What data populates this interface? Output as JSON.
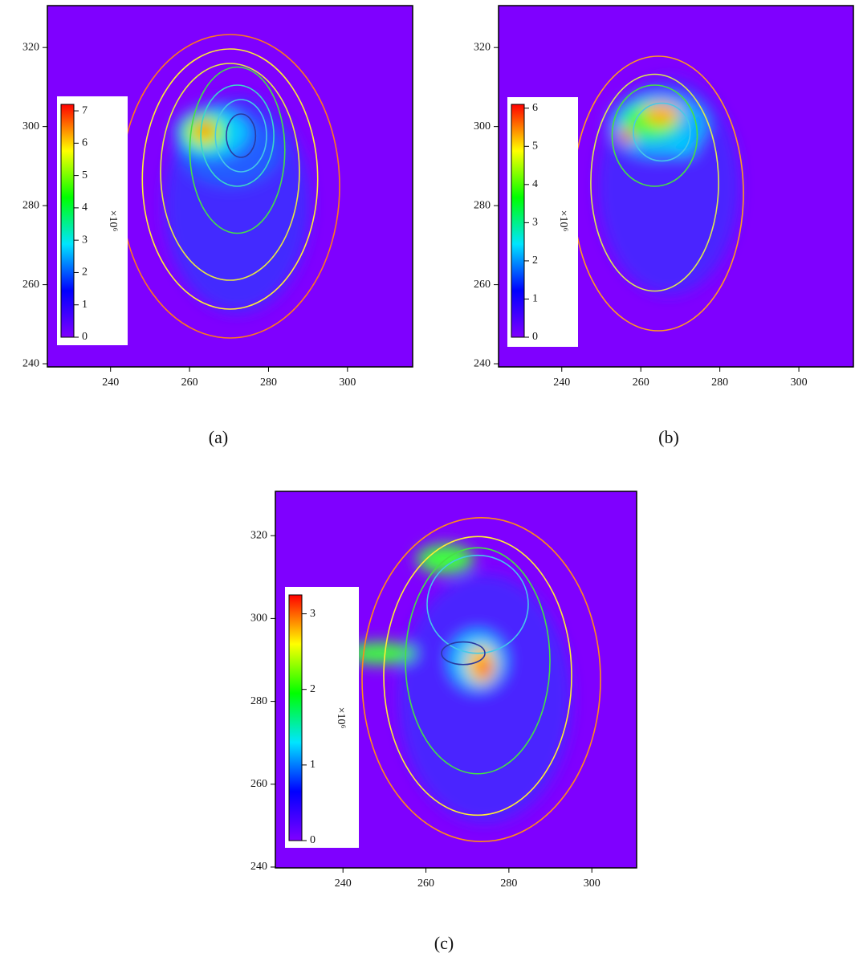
{
  "chart_data": [
    {
      "type": "heatmap",
      "caption": "(a)",
      "xlim": [
        224,
        316.5
      ],
      "ylim": [
        239.2,
        330.6
      ],
      "xticks": [
        240,
        260,
        280,
        300
      ],
      "yticks": [
        240,
        260,
        280,
        300,
        320
      ],
      "colorbar_label": "×10⁶",
      "clim": [
        0,
        7.2
      ],
      "cticks": [
        0,
        1,
        2,
        3,
        4,
        5,
        6,
        7
      ],
      "colormap": [
        "#7f00ff",
        "#0000ff",
        "#00e5ff",
        "#00ff00",
        "#ffff00",
        "#ff0000"
      ]
    },
    {
      "type": "heatmap",
      "caption": "(b)",
      "xlim": [
        224,
        313.8
      ],
      "ylim": [
        239.2,
        330.6
      ],
      "xticks": [
        240,
        260,
        280,
        300
      ],
      "yticks": [
        240,
        260,
        280,
        300,
        320
      ],
      "colorbar_label": "×10⁶",
      "clim": [
        0,
        6.1
      ],
      "cticks": [
        0,
        1,
        2,
        3,
        4,
        5,
        6
      ],
      "colormap": [
        "#7f00ff",
        "#0000ff",
        "#00e5ff",
        "#00ff00",
        "#ffff00",
        "#ff0000"
      ]
    },
    {
      "type": "heatmap",
      "caption": "(c)",
      "xlim": [
        223.7,
        310.8
      ],
      "ylim": [
        239.8,
        330.7
      ],
      "xticks": [
        240,
        260,
        280,
        300
      ],
      "yticks": [
        240,
        260,
        280,
        300,
        320
      ],
      "colorbar_label": "×10⁶",
      "clim": [
        0,
        3.25
      ],
      "cticks": [
        0,
        1,
        2,
        3
      ],
      "colormap": [
        "#7f00ff",
        "#0000ff",
        "#00e5ff",
        "#00ff00",
        "#ffff00",
        "#ff0000"
      ]
    }
  ]
}
